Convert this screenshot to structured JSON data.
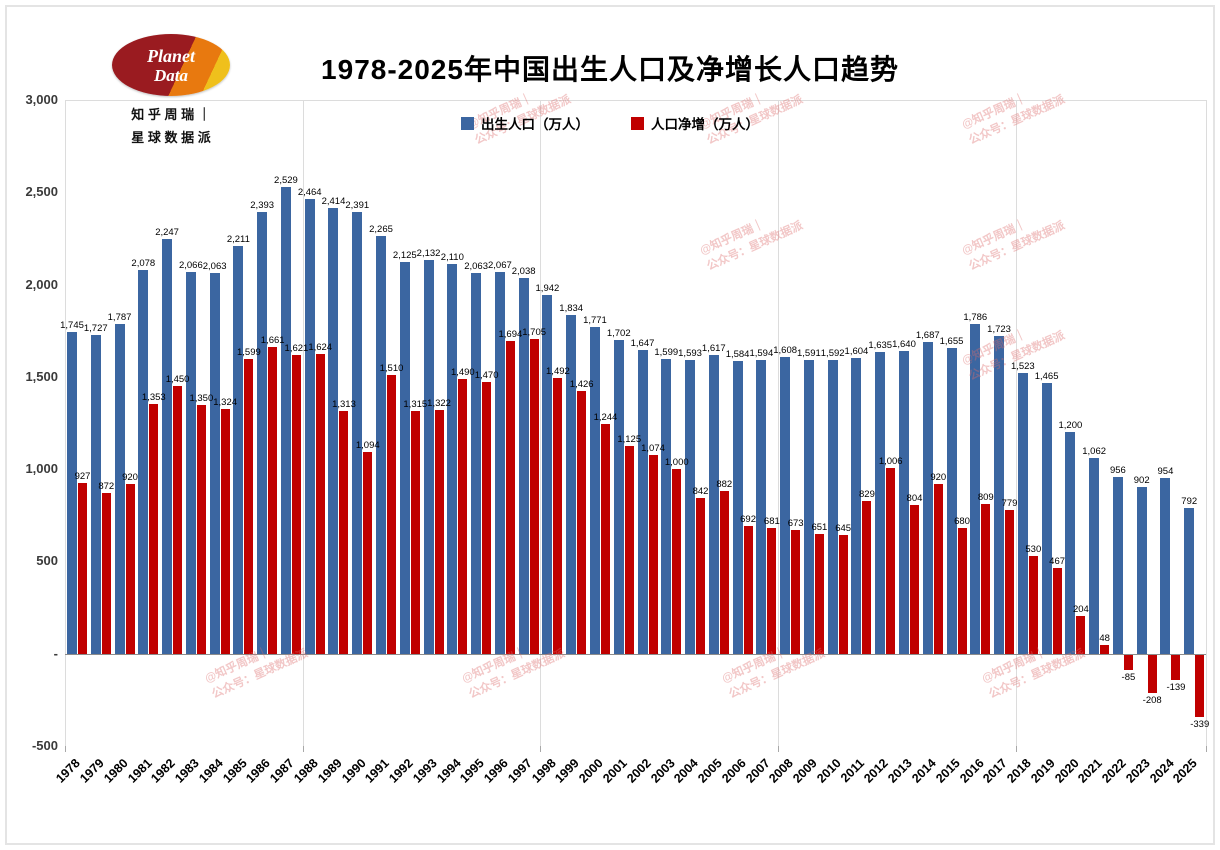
{
  "title": "1978-2025年中国出生人口及净增长人口趋势",
  "logo": {
    "line1": "Planet",
    "line2": "Data",
    "caption_line1": "知 乎 周 瑞 ｜",
    "caption_line2": "星 球 数 据 派"
  },
  "legend": [
    {
      "label": "出生人口（万人）",
      "color": "#3b66a1"
    },
    {
      "label": "人口净增（万人）",
      "color": "#c00000"
    }
  ],
  "watermark": {
    "line1": "@知乎周瑞｜",
    "line2": "公众号：星球数据派"
  },
  "y_axis": {
    "tick_labels": [
      "3,000",
      "2,500",
      "2,000",
      "1,500",
      "1,000",
      "500",
      "-",
      "-500"
    ],
    "max": 3000,
    "min": -500,
    "step": 500
  },
  "chart_data": {
    "type": "bar",
    "title": "1978-2025年中国出生人口及净增长人口趋势",
    "categories": [
      "1978",
      "1979",
      "1980",
      "1981",
      "1982",
      "1983",
      "1984",
      "1985",
      "1986",
      "1987",
      "1988",
      "1989",
      "1990",
      "1991",
      "1992",
      "1993",
      "1994",
      "1995",
      "1996",
      "1997",
      "1998",
      "1999",
      "2000",
      "2001",
      "2002",
      "2003",
      "2004",
      "2005",
      "2006",
      "2007",
      "2008",
      "2009",
      "2010",
      "2011",
      "2012",
      "2013",
      "2014",
      "2015",
      "2016",
      "2017",
      "2018",
      "2019",
      "2020",
      "2021",
      "2022",
      "2023",
      "2024",
      "2025"
    ],
    "series": [
      {
        "name": "出生人口（万人）",
        "color": "#3b66a1",
        "values": [
          1745,
          1727,
          1787,
          2078,
          2247,
          2066,
          2063,
          2211,
          2393,
          2529,
          2464,
          2414,
          2391,
          2265,
          2125,
          2132,
          2110,
          2063,
          2067,
          2038,
          1942,
          1834,
          1771,
          1702,
          1647,
          1599,
          1593,
          1617,
          1584,
          1594,
          1608,
          1591,
          1592,
          1604,
          1635,
          1640,
          1687,
          1655,
          1786,
          1723,
          1523,
          1465,
          1200,
          1062,
          956,
          902,
          954,
          792
        ]
      },
      {
        "name": "人口净增（万人）",
        "color": "#c00000",
        "values": [
          927,
          872,
          920,
          1353,
          1450,
          1350,
          1324,
          1599,
          1661,
          1621,
          1624,
          1313,
          1094,
          1510,
          1315,
          1322,
          1490,
          1470,
          1694,
          1705,
          1492,
          1426,
          1244,
          1125,
          1074,
          1000,
          842,
          882,
          692,
          681,
          673,
          651,
          645,
          829,
          1006,
          804,
          920,
          680,
          809,
          779,
          530,
          467,
          204,
          48,
          -85,
          -208,
          -139,
          -339
        ]
      }
    ],
    "ylim": [
      -500,
      3000
    ],
    "xlabel": "",
    "ylabel": "",
    "legend_position": "top-center",
    "grid": "vertical-major-every-10-years"
  }
}
